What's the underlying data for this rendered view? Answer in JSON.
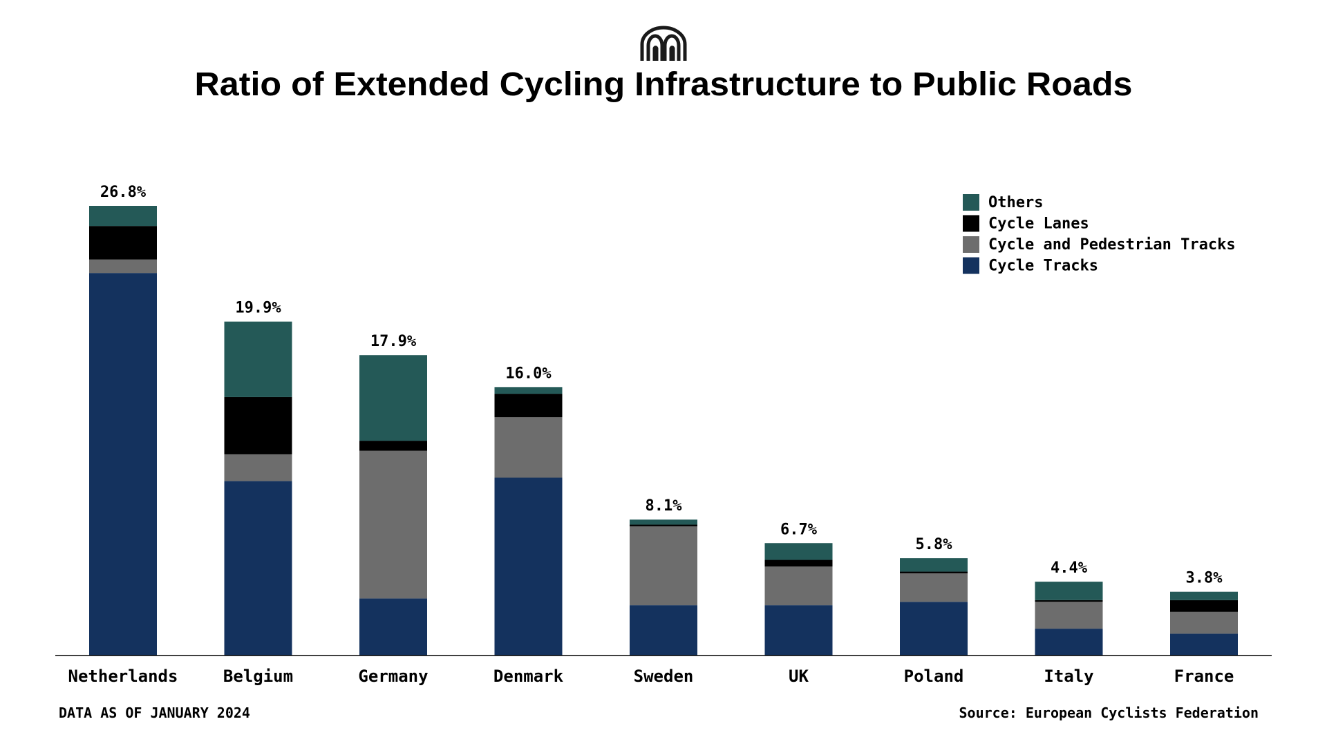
{
  "title": "Ratio of Extended Cycling Infrastructure to Public Roads",
  "logo": "brand-arches-logo",
  "footer": {
    "note": "DATA AS OF JANUARY 2024",
    "source": "Source: European Cyclists Federation"
  },
  "colors": {
    "others": "#245957",
    "cycle_lanes": "#000000",
    "cycle_pedestrian": "#6d6d6d",
    "cycle_tracks": "#14325e"
  },
  "chart_data": {
    "type": "bar",
    "stacked": true,
    "title": "Ratio of Extended Cycling Infrastructure to Public Roads",
    "xlabel": "",
    "ylabel": "",
    "ylim": [
      0,
      26.8
    ],
    "grid": false,
    "legend_position": "top-right",
    "categories": [
      "Netherlands",
      "Belgium",
      "Germany",
      "Denmark",
      "Sweden",
      "UK",
      "Poland",
      "Italy",
      "France"
    ],
    "totals": [
      26.8,
      19.9,
      17.9,
      16.0,
      8.1,
      6.7,
      5.8,
      4.4,
      3.8
    ],
    "total_labels": [
      "26.8%",
      "19.9%",
      "17.9%",
      "16.0%",
      "8.1%",
      "6.7%",
      "5.8%",
      "4.4%",
      "3.8%"
    ],
    "series": [
      {
        "name": "Cycle Tracks",
        "key": "cycle_tracks",
        "values": [
          22.8,
          10.4,
          3.4,
          10.6,
          3.0,
          3.0,
          3.2,
          1.6,
          1.3
        ]
      },
      {
        "name": "Cycle and Pedestrian Tracks",
        "key": "cycle_pedestrian",
        "values": [
          0.8,
          1.6,
          8.8,
          3.6,
          4.7,
          2.3,
          1.7,
          1.6,
          1.3
        ]
      },
      {
        "name": "Cycle Lanes",
        "key": "cycle_lanes",
        "values": [
          2.0,
          3.4,
          0.6,
          1.4,
          0.1,
          0.4,
          0.1,
          0.1,
          0.7
        ]
      },
      {
        "name": "Others",
        "key": "others",
        "values": [
          1.2,
          4.5,
          5.1,
          0.4,
          0.3,
          1.0,
          0.8,
          1.1,
          0.5
        ]
      }
    ],
    "legend": [
      "Others",
      "Cycle Lanes",
      "Cycle and Pedestrian Tracks",
      "Cycle Tracks"
    ]
  }
}
